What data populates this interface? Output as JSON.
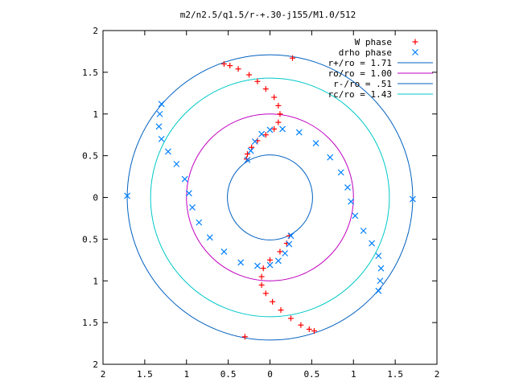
{
  "chart_data": {
    "type": "scatter",
    "title": "m2/n2.5/q1.5/r-+.30-j155/M1.0/512",
    "xlabel": "",
    "ylabel": "",
    "xlim": [
      -2,
      2
    ],
    "ylim": [
      -2,
      2
    ],
    "grid": false,
    "legend_position": "top-right",
    "x_tick_labels": [
      "2",
      "1.5",
      "1",
      "0.5",
      "0",
      "0.5",
      "1",
      "1.5",
      "2"
    ],
    "y_tick_labels": [
      "2",
      "1.5",
      "1",
      "0.5",
      "0",
      "0.5",
      "1",
      "1.5",
      "2"
    ],
    "point_series": [
      {
        "name": "W phase",
        "marker": "plus",
        "color": "#ff0000",
        "points": [
          [
            -0.55,
            1.6
          ],
          [
            -0.48,
            1.58
          ],
          [
            -0.38,
            1.54
          ],
          [
            -0.25,
            1.47
          ],
          [
            -0.15,
            1.39
          ],
          [
            -0.05,
            1.3
          ],
          [
            0.05,
            1.2
          ],
          [
            0.1,
            1.1
          ],
          [
            0.12,
            1.0
          ],
          [
            0.1,
            0.9
          ],
          [
            0.05,
            0.82
          ],
          [
            -0.05,
            0.75
          ],
          [
            -0.15,
            0.68
          ],
          [
            -0.22,
            0.6
          ],
          [
            -0.27,
            0.52
          ],
          [
            -0.28,
            0.46
          ],
          [
            0.23,
            -0.46
          ],
          [
            0.2,
            -0.55
          ],
          [
            0.12,
            -0.65
          ],
          [
            0.0,
            -0.75
          ],
          [
            -0.08,
            -0.85
          ],
          [
            -0.1,
            -0.95
          ],
          [
            -0.1,
            -1.05
          ],
          [
            -0.05,
            -1.15
          ],
          [
            0.03,
            -1.25
          ],
          [
            0.13,
            -1.35
          ],
          [
            0.25,
            -1.45
          ],
          [
            0.37,
            -1.53
          ],
          [
            0.47,
            -1.58
          ],
          [
            0.53,
            -1.6
          ],
          [
            0.27,
            1.67
          ],
          [
            -0.3,
            -1.67
          ]
        ]
      },
      {
        "name": "drho phase",
        "marker": "cross",
        "color": "#0080ff",
        "points": [
          [
            -1.3,
            1.12
          ],
          [
            -1.32,
            1.0
          ],
          [
            -1.33,
            0.85
          ],
          [
            -1.3,
            0.7
          ],
          [
            -1.22,
            0.55
          ],
          [
            -1.12,
            0.4
          ],
          [
            -1.02,
            0.22
          ],
          [
            -0.97,
            0.05
          ],
          [
            -0.93,
            -0.12
          ],
          [
            -0.85,
            -0.3
          ],
          [
            -0.72,
            -0.48
          ],
          [
            -0.55,
            -0.65
          ],
          [
            -0.35,
            -0.78
          ],
          [
            -0.15,
            -0.82
          ],
          [
            0.0,
            -0.81
          ],
          [
            0.1,
            -0.76
          ],
          [
            0.18,
            -0.67
          ],
          [
            0.23,
            -0.56
          ],
          [
            0.25,
            -0.46
          ],
          [
            1.3,
            -1.12
          ],
          [
            1.32,
            -1.0
          ],
          [
            1.33,
            -0.85
          ],
          [
            1.3,
            -0.7
          ],
          [
            1.22,
            -0.55
          ],
          [
            1.12,
            -0.4
          ],
          [
            1.02,
            -0.22
          ],
          [
            0.97,
            -0.05
          ],
          [
            0.93,
            0.12
          ],
          [
            0.85,
            0.3
          ],
          [
            0.72,
            0.48
          ],
          [
            0.55,
            0.65
          ],
          [
            0.35,
            0.78
          ],
          [
            0.15,
            0.82
          ],
          [
            0.0,
            0.81
          ],
          [
            -0.1,
            0.76
          ],
          [
            -0.18,
            0.67
          ],
          [
            -0.23,
            0.56
          ],
          [
            -0.27,
            0.45
          ],
          [
            -1.71,
            0.02
          ],
          [
            1.71,
            -0.02
          ]
        ]
      }
    ],
    "circle_series": [
      {
        "name": "r+/ro = 1.71",
        "radius": 1.71,
        "color": "#0060c0"
      },
      {
        "name": "ro/ro = 1.00",
        "radius": 1.0,
        "color": "#c000c0"
      },
      {
        "name": "r-/ro = .51",
        "radius": 0.51,
        "color": "#0060c0"
      },
      {
        "name": "rc/ro = 1.43",
        "radius": 1.43,
        "color": "#00c8c8"
      }
    ]
  }
}
